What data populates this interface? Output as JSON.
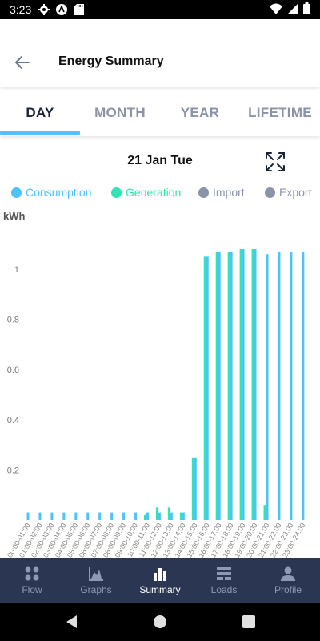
{
  "status_bar": {
    "time": "3:23"
  },
  "header": {
    "title": "Energy Summary"
  },
  "tabs": [
    {
      "label": "DAY",
      "active": true
    },
    {
      "label": "MONTH",
      "active": false
    },
    {
      "label": "YEAR",
      "active": false
    },
    {
      "label": "LIFETIME",
      "active": false
    }
  ],
  "date_label": "21 Jan Tue",
  "legend": [
    {
      "label": "Consumption",
      "color": "#4dc3f7"
    },
    {
      "label": "Generation",
      "color": "#2ee6b3"
    },
    {
      "label": "Import",
      "color": "#8a93a8"
    },
    {
      "label": "Export",
      "color": "#8a93a8"
    }
  ],
  "unit_label": "kWh",
  "chart_data": {
    "type": "bar",
    "ylabel": "kWh",
    "ylim": [
      0,
      1.15
    ],
    "yticks": [
      0.2,
      0.4,
      0.6,
      0.8,
      1
    ],
    "categories": [
      "00:00-01:00",
      "01:00-02:00",
      "02:00-03:00",
      "03:00-04:00",
      "04:00-05:00",
      "05:00-06:00",
      "06:00-07:00",
      "07:00-08:00",
      "08:00-09:00",
      "09:00-10:00",
      "10:00-11:00",
      "11:00-12:00",
      "12:00-13:00",
      "13:00-14:00",
      "14:00-15:00",
      "15:00-16:00",
      "16:00-17:00",
      "17:00-18:00",
      "18:00-19:00",
      "19:00-20:00",
      "20:00-21:00",
      "21:00-22:00",
      "22:00-23:00",
      "23:00-24:00"
    ],
    "series": [
      {
        "name": "Consumption",
        "color": "#4dc3f7",
        "values": [
          0.03,
          0.03,
          0.03,
          0.03,
          0.03,
          0.03,
          0.03,
          0.03,
          0.03,
          0.03,
          0.03,
          0.03,
          0.03,
          0.03,
          0.25,
          1.05,
          1.07,
          1.07,
          1.08,
          1.08,
          1.06,
          1.07,
          1.07,
          1.07
        ]
      },
      {
        "name": "Generation",
        "color": "#2ee6b3",
        "values": [
          0,
          0,
          0,
          0,
          0,
          0,
          0,
          0,
          0,
          0,
          0.02,
          0.05,
          0.05,
          0.03,
          0.25,
          1.05,
          1.07,
          1.07,
          1.08,
          1.08,
          0.06,
          0,
          0,
          0
        ]
      }
    ]
  },
  "bottom_nav": [
    {
      "label": "Flow",
      "icon": "flow-icon",
      "active": false
    },
    {
      "label": "Graphs",
      "icon": "graphs-icon",
      "active": false
    },
    {
      "label": "Summary",
      "icon": "summary-icon",
      "active": true
    },
    {
      "label": "Loads",
      "icon": "loads-icon",
      "active": false
    },
    {
      "label": "Profile",
      "icon": "profile-icon",
      "active": false
    }
  ]
}
